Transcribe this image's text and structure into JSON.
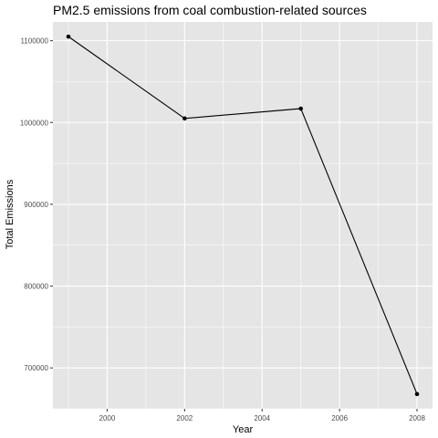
{
  "chart_data": {
    "type": "line",
    "title": "PM2.5 emissions from coal combustion-related sources",
    "xlabel": "Year",
    "ylabel": "Total Emissions",
    "x": [
      1999,
      2002,
      2005,
      2008
    ],
    "series": [
      {
        "values": [
          1105000,
          1005000,
          1017000,
          668000
        ]
      }
    ],
    "xlim": [
      1998.6,
      2008.4
    ],
    "ylim": [
      650000,
      1123000
    ],
    "x_ticks": [
      2000,
      2002,
      2004,
      2006,
      2008
    ],
    "x_tick_labels": [
      "2000",
      "2002",
      "2004",
      "2006",
      "2008"
    ],
    "y_ticks": [
      700000,
      800000,
      900000,
      1000000,
      1100000
    ],
    "y_tick_labels": [
      "700000",
      "800000",
      "900000",
      "1000000",
      "1100000"
    ],
    "grid": true,
    "panel_background": "#e5e5e5",
    "grid_color": "#ffffff",
    "line_color": "#000000",
    "legend": "none"
  }
}
